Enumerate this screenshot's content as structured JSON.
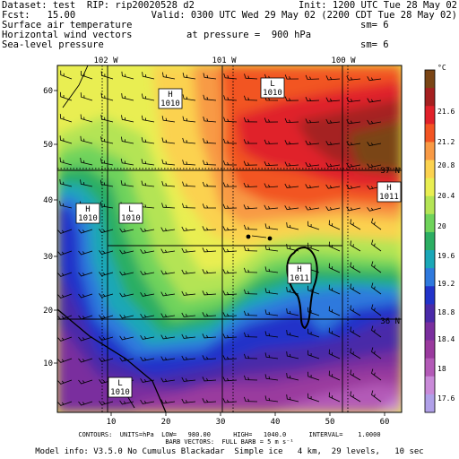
{
  "header": {
    "dataset": "Dataset: test  RIP: rip20020528 d2",
    "init": "Init: 1200 UTC Tue 28 May 02",
    "fcst": "Fcst:   15.00",
    "valid": "Valid: 0300 UTC Wed 29 May 02 (2200 CDT Tue 28 May 02)",
    "line3": "Surface air temperature",
    "sm1": "sm= 6",
    "line4": "Horizontal wind vectors",
    "pressure": "at pressure =  900 hPa",
    "line5": "Sea-level pressure",
    "sm2": "sm= 6"
  },
  "lon_labels": [
    "102 W",
    "101 W",
    "100 W"
  ],
  "lat_labels": [
    "37 N",
    "36 N"
  ],
  "x_ticks": [
    "10",
    "20",
    "30",
    "40",
    "50",
    "60"
  ],
  "y_ticks": [
    "10",
    "20",
    "30",
    "40",
    "50",
    "60"
  ],
  "pressure_centers": [
    {
      "type": "H",
      "value": "1010"
    },
    {
      "type": "L",
      "value": "1010"
    },
    {
      "type": "H",
      "value": "1010"
    },
    {
      "type": "L",
      "value": "1010"
    },
    {
      "type": "H",
      "value": "1011"
    },
    {
      "type": "H",
      "value": "1011"
    },
    {
      "type": "L",
      "value": "1010"
    }
  ],
  "colorbar": {
    "unit": "°C",
    "labels": [
      "21.6",
      "21.2",
      "20.8",
      "20.4",
      "20",
      "19.6",
      "19.2",
      "18.8",
      "18.4",
      "18",
      "17.6"
    ],
    "colors": [
      "#7a4515",
      "#a52020",
      "#e0212a",
      "#f25423",
      "#f89a45",
      "#fbd24f",
      "#e9ee52",
      "#b4e455",
      "#6fd35b",
      "#2cae63",
      "#1ba7b7",
      "#2f79dd",
      "#2233c9",
      "#4a2aa8",
      "#7a2e9e",
      "#9a3a9e",
      "#b35ab7",
      "#c98ad8",
      "#b0a0e8"
    ]
  },
  "footer": {
    "line1": "CONTOURS:  UNITS=hPa  LOW=   980.00      HIGH=   1040.0      INTERVAL=    1.0000",
    "line2": "BARB VECTORS:  FULL BARB = 5 m s⁻¹",
    "line3": "Model info: V3.5.0 No Cumulus Blackadar  Simple ice   4 km,  29 levels,   10 sec"
  },
  "colors": {
    "c21_6": "#7a4515",
    "c21_4": "#a52020",
    "c21_2": "#e0212a",
    "c21_0": "#f25423",
    "c20_6": "#f89a45",
    "c20_2": "#fbd24f",
    "c19_9": "#e9ee52",
    "c19_7": "#b4e455",
    "c19_5": "#6fd35b",
    "c19_3": "#2cae63",
    "c19_1": "#1ba7b7",
    "c18_9": "#2f79dd",
    "c18_7": "#2233c9",
    "c18_5": "#4a2aa8",
    "c18_2": "#7a2e9e",
    "c18_0": "#9a3a9e",
    "c17_8": "#b35ab7",
    "c17_6": "#c98ad8"
  }
}
